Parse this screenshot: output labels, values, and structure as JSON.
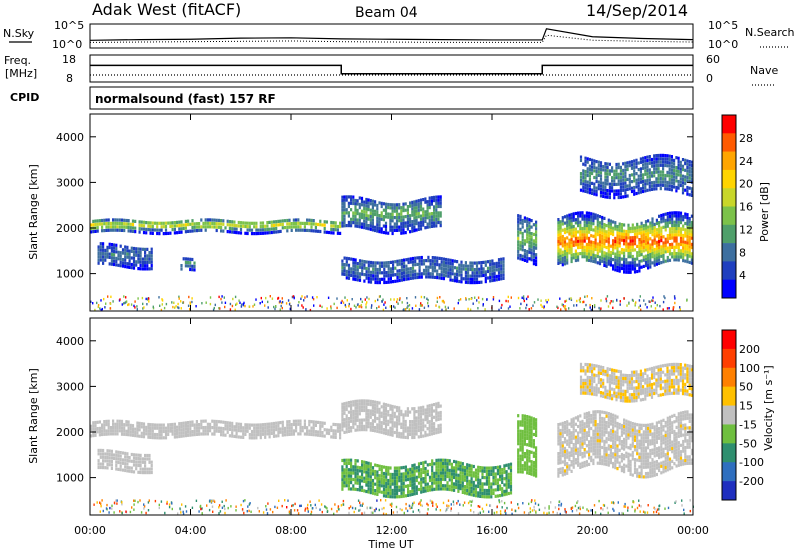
{
  "header": {
    "station": "Adak West (fitACF)",
    "beam": "Beam 04",
    "date": "14/Sep/2014"
  },
  "top_panels": {
    "nsky_label": "N.Sky",
    "nsearch_label": "N.Search",
    "nsky_ticks": [
      "10^5",
      "10^0"
    ],
    "nsearch_ticks": [
      "10^5",
      "10^0"
    ],
    "freq_label_1": "Freq.",
    "freq_label_2": "[MHz]",
    "freq_ticks": [
      "18",
      "8"
    ],
    "nave_label": "Nave",
    "nave_ticks": [
      "60",
      "0"
    ],
    "cpid_label": "CPID",
    "cpid_text": "normalsound (fast) 157 RF"
  },
  "colors": {
    "power_scale": [
      "#0000ff",
      "#1f3fbf",
      "#3d6f9f",
      "#4f9f6a",
      "#7cc24a",
      "#c8d62a",
      "#ffd400",
      "#ffa500",
      "#ff5a00",
      "#ff0000"
    ],
    "velocity_scale": [
      "#1f2fbf",
      "#2f6fbf",
      "#2f8f6f",
      "#6fbf3f",
      "#c0c0c0",
      "#ffc000",
      "#ff8000",
      "#ff3f00",
      "#ff0000"
    ]
  },
  "chart_data": [
    {
      "type": "line",
      "panel": "N.Sky / N.Search",
      "x": [
        "00:00",
        "02:00",
        "04:00",
        "06:00",
        "08:00",
        "10:00",
        "12:00",
        "14:00",
        "16:00",
        "18:00",
        "18:10",
        "20:00",
        "22:00",
        "24:00"
      ],
      "series": [
        {
          "name": "N.Sky",
          "values": [
            1.3,
            1.5,
            1.6,
            1.9,
            2.0,
            1.7,
            1.6,
            1.5,
            1.4,
            1.4,
            4.5,
            2.3,
            1.8,
            1.5
          ]
        },
        {
          "name": "N.Search",
          "values": [
            1.0,
            1.1,
            1.2,
            1.3,
            1.4,
            1.2,
            1.1,
            1.0,
            1.0,
            1.0,
            3.0,
            1.6,
            1.3,
            1.1
          ]
        }
      ],
      "ylim": [
        0,
        5
      ],
      "scale": "log"
    },
    {
      "type": "line",
      "panel": "Freq / Nave",
      "x": [
        "00:00",
        "10:00",
        "10:00",
        "18:00",
        "18:00",
        "24:00"
      ],
      "series": [
        {
          "name": "Freq.",
          "values": [
            14.5,
            14.5,
            10.5,
            10.5,
            14.5,
            14.5
          ]
        },
        {
          "name": "Nave",
          "values": [
            12,
            12,
            12,
            12,
            12,
            12
          ]
        }
      ],
      "ylim": [
        8,
        18
      ]
    },
    {
      "type": "heatmap",
      "panel": "Power",
      "xlabel": "Time UT",
      "ylabel": "Slant Range [km]",
      "x_ticks": [
        "00:00",
        "04:00",
        "08:00",
        "12:00",
        "16:00",
        "20:00",
        "00:00"
      ],
      "y_ticks": [
        "1000",
        "2000",
        "3000",
        "4000"
      ],
      "xlim": [
        0,
        24
      ],
      "ylim": [
        180,
        4500
      ],
      "colorbar_label": "Power [dB]",
      "colorbar_ticks": [
        "4",
        "8",
        "12",
        "16",
        "20",
        "24",
        "28"
      ],
      "colorbar_range": [
        0,
        30
      ],
      "echo_bands": [
        {
          "t": [
            0.0,
            10.0
          ],
          "range": [
            1950,
            2250
          ],
          "peak_value": 18
        },
        {
          "t": [
            0.3,
            2.5
          ],
          "range": [
            1200,
            1700
          ],
          "peak_value": 8
        },
        {
          "t": [
            3.6,
            4.2
          ],
          "range": [
            1100,
            1400
          ],
          "peak_value": 10
        },
        {
          "t": [
            10.0,
            14.0
          ],
          "range": [
            2000,
            2700
          ],
          "peak_value": 12
        },
        {
          "t": [
            10.0,
            16.5
          ],
          "range": [
            900,
            1400
          ],
          "peak_value": 8
        },
        {
          "t": [
            17.0,
            17.8
          ],
          "range": [
            1300,
            2300
          ],
          "peak_value": 14
        },
        {
          "t": [
            18.6,
            24.0
          ],
          "range": [
            1200,
            2300
          ],
          "peak_value": 26
        },
        {
          "t": [
            19.5,
            24.0
          ],
          "range": [
            2800,
            3600
          ],
          "peak_value": 10
        }
      ]
    },
    {
      "type": "heatmap",
      "panel": "Velocity",
      "xlabel": "Time UT",
      "ylabel": "Slant Range [km]",
      "x_ticks": [
        "00:00",
        "04:00",
        "08:00",
        "12:00",
        "16:00",
        "20:00",
        "00:00"
      ],
      "y_ticks": [
        "1000",
        "2000",
        "3000",
        "4000"
      ],
      "xlim": [
        0,
        24
      ],
      "ylim": [
        180,
        4500
      ],
      "colorbar_label": "Velocity [m s⁻¹]",
      "colorbar_ticks": [
        "200",
        "100",
        "50",
        "15",
        "-15",
        "-50",
        "-100",
        "-200"
      ],
      "colorbar_range": [
        -250,
        250
      ],
      "echo_bands": [
        {
          "t": [
            0.0,
            10.0
          ],
          "range": [
            1950,
            2300
          ],
          "peak_value": 0
        },
        {
          "t": [
            0.3,
            2.5
          ],
          "range": [
            1200,
            1650
          ],
          "peak_value": 0
        },
        {
          "t": [
            10.0,
            14.0
          ],
          "range": [
            2000,
            2700
          ],
          "peak_value": 0
        },
        {
          "t": [
            10.0,
            16.8
          ],
          "range": [
            700,
            1400
          ],
          "peak_value": -80
        },
        {
          "t": [
            17.0,
            17.8
          ],
          "range": [
            1000,
            2300
          ],
          "peak_value": -60
        },
        {
          "t": [
            18.6,
            24.0
          ],
          "range": [
            1200,
            2400
          ],
          "peak_value": 10
        },
        {
          "t": [
            19.5,
            24.0
          ],
          "range": [
            2800,
            3500
          ],
          "peak_value": 20
        }
      ]
    }
  ]
}
